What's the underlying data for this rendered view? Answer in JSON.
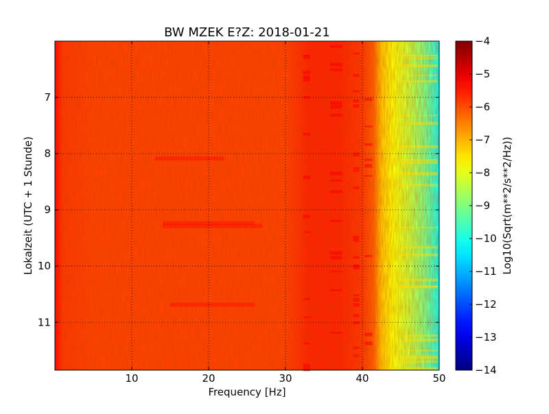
{
  "chart_data": [
    {
      "type": "heatmap",
      "title": "BW MZEK E?Z: 2018-01-21",
      "xlabel": "Frequency [Hz]",
      "ylabel": "Lokalzeit (UTC + 1 Stunde)",
      "xlim": [
        0,
        50
      ],
      "ylim": [
        6.0,
        11.85
      ],
      "y_inverted": true,
      "x_ticks": [
        10,
        20,
        30,
        40,
        50
      ],
      "y_ticks": [
        7,
        8,
        9,
        10,
        11
      ],
      "grid": true,
      "colormap": "jet",
      "color_range": [
        -14,
        -4
      ],
      "colorbar_label": "Log10(Sqrt(m**2/s**2/Hz))",
      "colorbar_ticks": [
        -4,
        -5,
        -6,
        -7,
        -8,
        -9,
        -10,
        -11,
        -12,
        -13,
        -14
      ],
      "band_levels": {
        "frequency_hz": [
          0,
          1,
          5,
          10,
          20,
          30,
          33,
          37,
          40,
          41.5,
          42.5,
          44,
          46,
          48,
          49.5,
          50
        ],
        "log10_psd": [
          -5.3,
          -5.8,
          -5.9,
          -5.9,
          -5.9,
          -5.9,
          -5.6,
          -5.6,
          -5.8,
          -6.2,
          -7.2,
          -7.8,
          -8.3,
          -9.0,
          -9.8,
          -10.2
        ]
      }
    }
  ]
}
